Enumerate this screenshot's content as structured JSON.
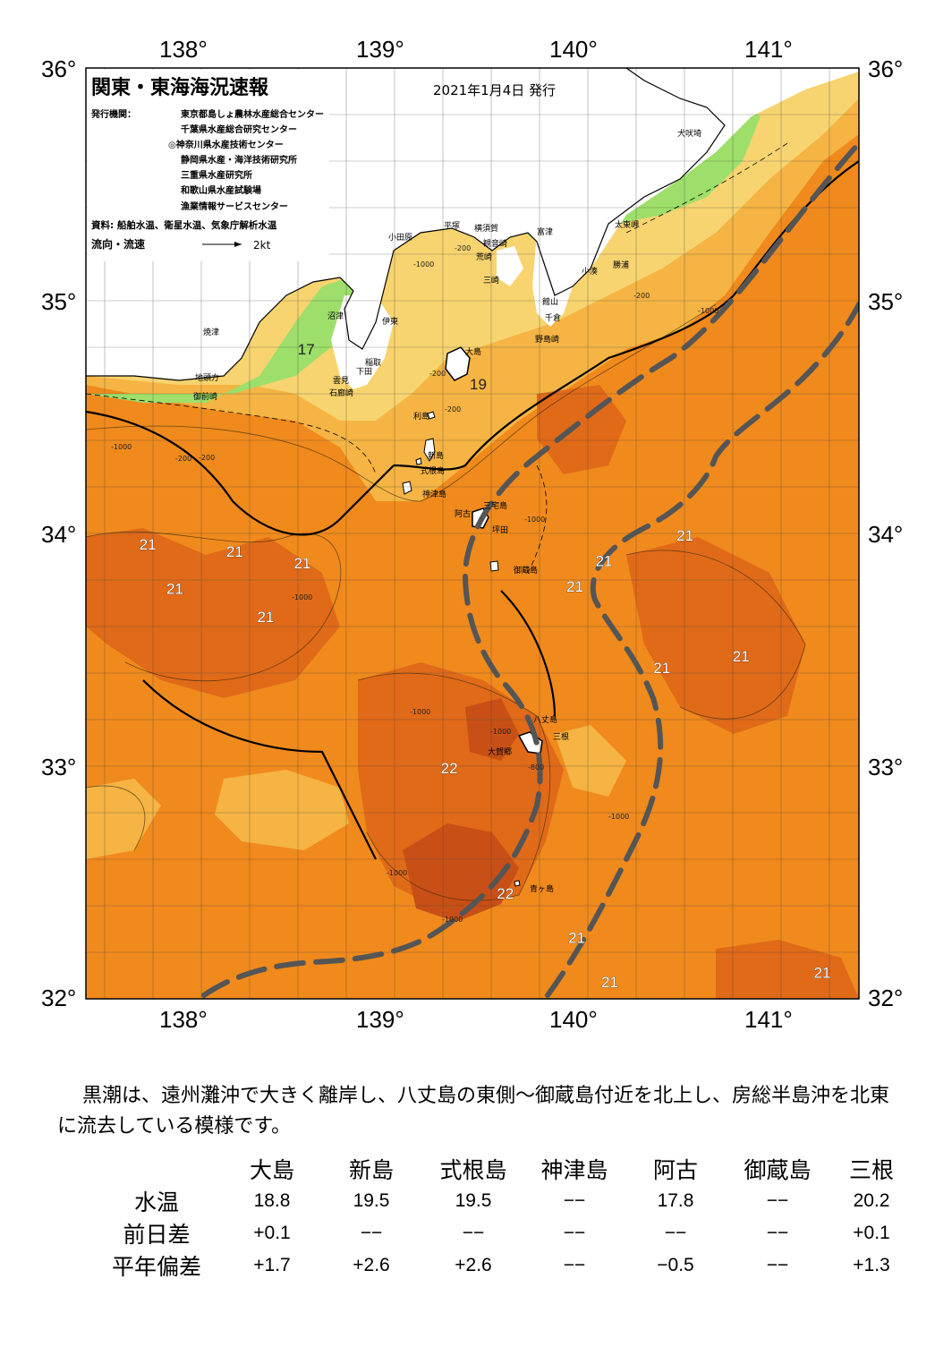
{
  "title": "関東・東海海況速報",
  "issue_date": "2021年1月4日 発行",
  "publishers_label": "発行機関：",
  "publishers": [
    "東京都島しょ農林水産総合センター",
    "千葉県水産総合研究センター",
    "◎神奈川県水産技術センター",
    "静岡県水産・海洋技術研究所",
    "三重県水産研究所",
    "和歌山県水産試験場",
    "漁業情報サービスセンター"
  ],
  "sources": "資料: 船舶水温、衛星水温、気象庁解析水温",
  "flow_legend": {
    "label": "流向・流速",
    "unit": "2kt"
  },
  "lon_labels": [
    "138°",
    "139°",
    "140°",
    "141°"
  ],
  "lat_labels": [
    "36°",
    "35°",
    "34°",
    "33°",
    "32°"
  ],
  "places": {
    "inubozaki": "犬吠埼",
    "taitomisaki": "太東岬",
    "katsuura": "勝浦",
    "kominato": "小湊",
    "futtsu": "富津",
    "yokosuka": "横須賀",
    "hiratsuka": "平塚",
    "odawara": "小田原",
    "kannonzaki": "観音崎",
    "arasaki": "荒崎",
    "misaki": "三崎",
    "tateyama": "館山",
    "chikura": "千倉",
    "nojimazaki": "野島崎",
    "numazu": "沼津",
    "ito": "伊東",
    "yaizu": "焼津",
    "inatori": "稲取",
    "shimoda": "下田",
    "mikomoto": "雲見",
    "irozaki": "石廊崎",
    "jitogata": "地頭方",
    "omaezaki": "御前崎",
    "oshima": "大島",
    "toshima": "利島",
    "niijima": "新島",
    "shikinejima": "式根島",
    "kozushima": "神津島",
    "miyakejima": "三宅島",
    "ako": "阿古",
    "tsubota": "坪田",
    "mikurajima": "御蔵島",
    "hachijojima": "八丈島",
    "mitsune": "三根",
    "okago": "大賀郷",
    "aogashima": "青ヶ島"
  },
  "contour_labels": [
    "-200",
    "-1000",
    "-200",
    "-1000",
    "-200",
    "-1000",
    "-200",
    "-1000",
    "-1000",
    "-1000",
    "-1000",
    "-1000",
    "-800",
    "-1000",
    "-1000",
    "-200",
    "-200"
  ],
  "temperature_labels": [
    {
      "value": "17",
      "lon": 138.64,
      "lat": 34.77
    },
    {
      "value": "19",
      "lon": 139.53,
      "lat": 34.62
    },
    {
      "value": "21",
      "lon": 137.82,
      "lat": 33.93
    },
    {
      "value": "21",
      "lon": 138.27,
      "lat": 33.9
    },
    {
      "value": "21",
      "lon": 138.62,
      "lat": 33.85
    },
    {
      "value": "21",
      "lon": 137.96,
      "lat": 33.74
    },
    {
      "value": "21",
      "lon": 138.43,
      "lat": 33.62
    },
    {
      "value": "21",
      "lon": 140.6,
      "lat": 33.97
    },
    {
      "value": "21",
      "lon": 140.18,
      "lat": 33.86
    },
    {
      "value": "21",
      "lon": 140.03,
      "lat": 33.75
    },
    {
      "value": "21",
      "lon": 140.48,
      "lat": 33.4
    },
    {
      "value": "21",
      "lon": 140.89,
      "lat": 33.45
    },
    {
      "value": "22",
      "lon": 139.38,
      "lat": 32.97
    },
    {
      "value": "22",
      "lon": 139.67,
      "lat": 32.43
    },
    {
      "value": "21",
      "lon": 140.04,
      "lat": 32.24
    },
    {
      "value": "21",
      "lon": 140.21,
      "lat": 32.05
    },
    {
      "value": "21",
      "lon": 141.31,
      "lat": 32.09
    }
  ],
  "summary": "黒潮は、遠州灘沖で大きく離岸し、八丈島の東側～御蔵島付近を北上し、房総半島沖を北東に流去している模様です。",
  "table": {
    "columns": [
      "大島",
      "新島",
      "式根島",
      "神津島",
      "阿古",
      "御蔵島",
      "三根"
    ],
    "rows": [
      {
        "label": "水温",
        "values": [
          "18.8",
          "19.5",
          "19.5",
          "−−",
          "17.8",
          "−−",
          "20.2"
        ]
      },
      {
        "label": "前日差",
        "values": [
          "+0.1",
          "−−",
          "−−",
          "−−",
          "−−",
          "−−",
          "+0.1"
        ]
      },
      {
        "label": "平年偏差",
        "values": [
          "+1.7",
          "+2.6",
          "+2.6",
          "−−",
          "−0.5",
          "−−",
          "+1.3"
        ]
      }
    ]
  },
  "colors": {
    "sea_warm": "#f08a1c",
    "sea_warmer": "#e06a18",
    "sea_warmest": "#c84f16",
    "sea_mid": "#f5b443",
    "sea_cool": "#f7d470",
    "sea_cold": "#9ddf6a",
    "sea_coldest": "#33c6e6",
    "kuroshio_axis": "#555555"
  }
}
